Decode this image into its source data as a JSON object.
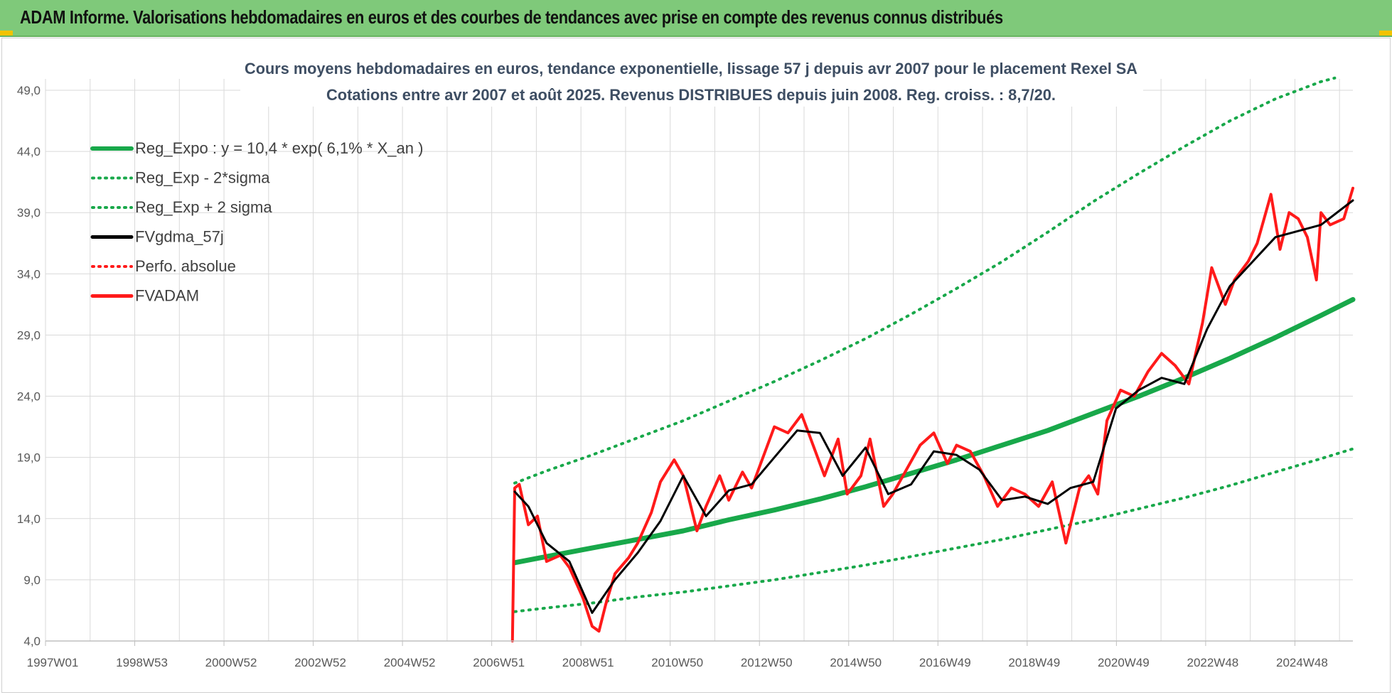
{
  "banner": {
    "title": "ADAM Informe. Valorisations hebdomadaires en euros et des courbes de tendances avec prise en compte des revenus connus distribués"
  },
  "colors": {
    "banner_bg": "#7fc97a",
    "regression": "#18a84a",
    "band": "#18a84a",
    "gdma": "#000000",
    "fvadam": "#ff1a1a",
    "perfo": "#ff1a1a",
    "grid": "#d9d9d9"
  },
  "chart_data": {
    "type": "line",
    "title": "Cours moyens hebdomadaires en euros, tendance exponentielle, lissage 57 j depuis avr 2007 pour le placement Rexel SA",
    "subtitle": "Cotations entre avr 2007 et août 2025. Revenus DISTRIBUES depuis juin 2008. Reg. croiss. : 8,7/20.",
    "xlabel": "",
    "ylabel": "",
    "x_ticks": [
      "1997W01",
      "1998W53",
      "2000W52",
      "2002W52",
      "2004W52",
      "2006W51",
      "2008W51",
      "2010W50",
      "2012W50",
      "2014W50",
      "2016W49",
      "2018W49",
      "2020W49",
      "2022W48",
      "2024W48"
    ],
    "y_ticks": [
      "4,0",
      "9,0",
      "14,0",
      "19,0",
      "24,0",
      "29,0",
      "34,0",
      "39,0",
      "44,0",
      "49,0"
    ],
    "xlim": [
      1997.0,
      2025.7
    ],
    "ylim": [
      4,
      49
    ],
    "grid": true,
    "legend_position": "top-left",
    "series": [
      {
        "name": "Reg_Expo : y = 10,4 * exp( 6,1% *  X_an )",
        "style": "solid-thick",
        "x": [
          2007.3,
          2008,
          2009,
          2010,
          2011,
          2012,
          2013,
          2014,
          2015,
          2016,
          2017,
          2018,
          2019,
          2020,
          2021,
          2022,
          2023,
          2024,
          2025,
          2025.7
        ],
        "y": [
          10.4,
          10.9,
          11.6,
          12.3,
          13.0,
          13.9,
          14.7,
          15.6,
          16.6,
          17.7,
          18.8,
          20.0,
          21.2,
          22.6,
          24.0,
          25.5,
          27.1,
          28.8,
          30.6,
          31.9
        ]
      },
      {
        "name": "Reg_Exp - 2*sigma",
        "style": "dotted",
        "x": [
          2007.3,
          2008,
          2009,
          2010,
          2011,
          2012,
          2013,
          2014,
          2015,
          2016,
          2017,
          2018,
          2019,
          2020,
          2021,
          2022,
          2023,
          2024,
          2025,
          2025.7
        ],
        "y": [
          6.4,
          6.7,
          7.1,
          7.6,
          8.0,
          8.5,
          9.0,
          9.6,
          10.2,
          10.9,
          11.6,
          12.3,
          13.1,
          13.9,
          14.8,
          15.7,
          16.7,
          17.8,
          18.9,
          19.7
        ]
      },
      {
        "name": "Reg_Exp + 2 sigma",
        "style": "dotted",
        "x": [
          2007.3,
          2008,
          2009,
          2010,
          2011,
          2012,
          2013,
          2014,
          2015,
          2016,
          2017,
          2018,
          2019,
          2020,
          2021,
          2022,
          2023,
          2024,
          2025,
          2025.3
        ],
        "y": [
          16.9,
          17.9,
          19.2,
          20.6,
          22.0,
          23.6,
          25.2,
          26.9,
          28.7,
          30.7,
          32.8,
          35.0,
          37.4,
          39.9,
          42.2,
          44.4,
          46.5,
          48.3,
          49.7,
          50.0
        ]
      },
      {
        "name": "FVgdma_57j",
        "style": "solid",
        "x": [
          2007.3,
          2007.6,
          2008.0,
          2008.5,
          2009.0,
          2009.5,
          2010.0,
          2010.5,
          2011.0,
          2011.5,
          2012.0,
          2012.5,
          2013.0,
          2013.5,
          2014.0,
          2014.5,
          2015.0,
          2015.5,
          2016.0,
          2016.5,
          2017.0,
          2017.5,
          2018.0,
          2018.5,
          2019.0,
          2019.5,
          2020.0,
          2020.5,
          2021.0,
          2021.5,
          2022.0,
          2022.5,
          2023.0,
          2023.5,
          2024.0,
          2024.5,
          2025.0,
          2025.7
        ],
        "y": [
          16.2,
          15.0,
          12.0,
          10.5,
          6.3,
          9.0,
          11.2,
          13.8,
          17.5,
          14.2,
          16.3,
          16.8,
          19.0,
          21.2,
          21.0,
          17.5,
          19.8,
          16.0,
          16.8,
          19.5,
          19.2,
          18.0,
          15.5,
          15.8,
          15.2,
          16.5,
          17.0,
          23.0,
          24.5,
          25.5,
          25.0,
          29.5,
          33.0,
          35.0,
          37.0,
          37.5,
          38.0,
          40.0
        ]
      },
      {
        "name": "Perfo. absolue",
        "style": "dotted",
        "x": [],
        "y": []
      },
      {
        "name": "FVADAM",
        "style": "solid-thick",
        "x": [
          2007.25,
          2007.3,
          2007.4,
          2007.6,
          2007.8,
          2008.0,
          2008.3,
          2008.5,
          2008.8,
          2009.0,
          2009.15,
          2009.3,
          2009.5,
          2009.8,
          2010.0,
          2010.3,
          2010.5,
          2010.8,
          2011.0,
          2011.3,
          2011.5,
          2011.8,
          2012.0,
          2012.3,
          2012.5,
          2012.8,
          2013.0,
          2013.3,
          2013.6,
          2013.9,
          2014.1,
          2014.4,
          2014.6,
          2014.9,
          2015.1,
          2015.4,
          2015.6,
          2015.9,
          2016.2,
          2016.5,
          2016.8,
          2017.0,
          2017.3,
          2017.6,
          2017.9,
          2018.2,
          2018.5,
          2018.8,
          2019.1,
          2019.4,
          2019.7,
          2019.9,
          2020.1,
          2020.3,
          2020.6,
          2020.9,
          2021.2,
          2021.5,
          2021.8,
          2022.1,
          2022.4,
          2022.6,
          2022.9,
          2023.1,
          2023.4,
          2023.6,
          2023.9,
          2024.1,
          2024.3,
          2024.5,
          2024.7,
          2024.9,
          2025.0,
          2025.2,
          2025.5,
          2025.7
        ],
        "y": [
          4.0,
          16.5,
          16.8,
          13.5,
          14.2,
          10.5,
          11.0,
          10.0,
          7.5,
          5.2,
          4.8,
          7.0,
          9.5,
          10.8,
          12.0,
          14.5,
          17.0,
          18.8,
          17.5,
          13.0,
          15.0,
          17.5,
          15.5,
          17.8,
          16.5,
          19.5,
          21.5,
          21.0,
          22.5,
          19.5,
          17.5,
          20.5,
          16.0,
          17.5,
          20.5,
          15.0,
          16.0,
          18.0,
          20.0,
          21.0,
          18.5,
          20.0,
          19.5,
          17.5,
          15.0,
          16.5,
          16.0,
          15.0,
          17.0,
          12.0,
          16.5,
          17.5,
          16.0,
          22.0,
          24.5,
          24.0,
          26.0,
          27.5,
          26.5,
          25.0,
          30.0,
          34.5,
          31.5,
          33.5,
          35.0,
          36.5,
          40.5,
          36.0,
          39.0,
          38.5,
          37.0,
          33.5,
          39.0,
          38.0,
          38.5,
          41.0
        ]
      }
    ]
  }
}
